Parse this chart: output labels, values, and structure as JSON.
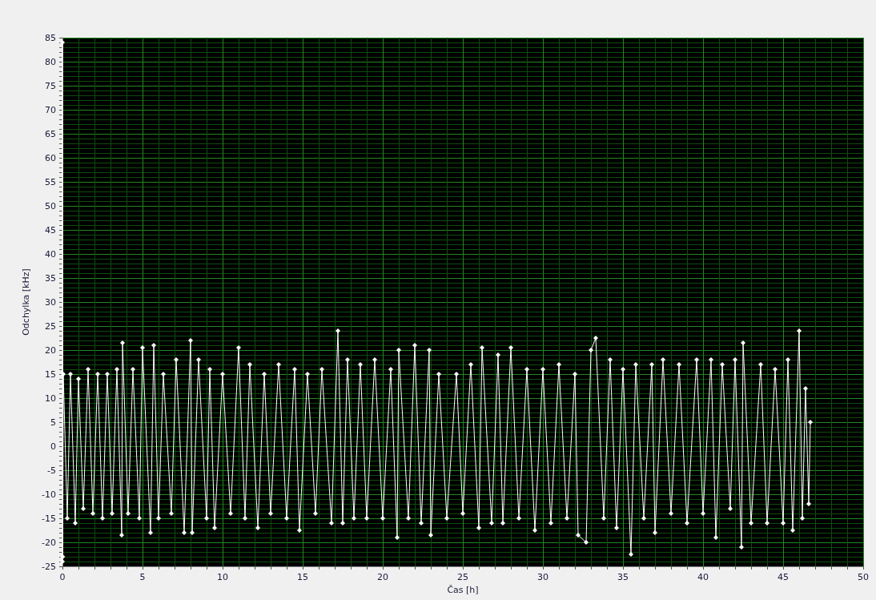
{
  "chart_data": {
    "type": "line",
    "xlabel": "Čas [h]",
    "ylabel": "Odchylka [kHz]",
    "xlim": [
      0,
      50
    ],
    "xticks": [
      0,
      {
        "value": 1,
        "label": null
      },
      {
        "value": 2,
        "label": null
      },
      {
        "value": 3,
        "label": null
      },
      {
        "value": 4,
        "label": null
      },
      5,
      {
        "value": 6,
        "label": null
      },
      {
        "value": 7,
        "label": null
      },
      {
        "value": 8,
        "label": null
      },
      {
        "value": 9,
        "label": null
      },
      10,
      {
        "value": 11,
        "label": null
      },
      {
        "value": 12,
        "label": null
      },
      {
        "value": 13,
        "label": null
      },
      {
        "value": 14,
        "label": null
      },
      15,
      {
        "value": 16,
        "label": null
      },
      {
        "value": 17,
        "label": null
      },
      {
        "value": 18,
        "label": null
      },
      {
        "value": 19,
        "label": null
      },
      20,
      {
        "value": 21,
        "label": null
      },
      {
        "value": 22,
        "label": null
      },
      {
        "value": 23,
        "label": null
      },
      {
        "value": 24,
        "label": null
      },
      25,
      {
        "value": 26,
        "label": null
      },
      {
        "value": 27,
        "label": null
      },
      {
        "value": 28,
        "label": null
      },
      {
        "value": 29,
        "label": null
      },
      30,
      {
        "value": 31,
        "label": null
      },
      {
        "value": 32,
        "label": null
      },
      {
        "value": 33,
        "label": null
      },
      {
        "value": 34,
        "label": null
      },
      35,
      {
        "value": 36,
        "label": null
      },
      {
        "value": 37,
        "label": null
      },
      {
        "value": 38,
        "label": null
      },
      {
        "value": 39,
        "label": null
      },
      40,
      {
        "value": 41,
        "label": null
      },
      {
        "value": 42,
        "label": null
      },
      {
        "value": 43,
        "label": null
      },
      {
        "value": 44,
        "label": null
      },
      45,
      {
        "value": 46,
        "label": null
      },
      {
        "value": 47,
        "label": null
      },
      {
        "value": 48,
        "label": null
      },
      {
        "value": 49,
        "label": null
      },
      50
    ],
    "ylim": [
      -25,
      85
    ],
    "yticks": [
      -25,
      {
        "value": -24,
        "label": null
      },
      {
        "value": -23,
        "label": null
      },
      {
        "value": -22,
        "label": null
      },
      {
        "value": -21,
        "label": null
      },
      -20,
      {
        "value": -19,
        "label": null
      },
      {
        "value": -18,
        "label": null
      },
      {
        "value": -17,
        "label": null
      },
      {
        "value": -16,
        "label": null
      },
      -15,
      {
        "value": -14,
        "label": null
      },
      {
        "value": -13,
        "label": null
      },
      {
        "value": -12,
        "label": null
      },
      {
        "value": -11,
        "label": null
      },
      -10,
      {
        "value": -9,
        "label": null
      },
      {
        "value": -8,
        "label": null
      },
      {
        "value": -7,
        "label": null
      },
      {
        "value": -6,
        "label": null
      },
      -5,
      {
        "value": -4,
        "label": null
      },
      {
        "value": -3,
        "label": null
      },
      {
        "value": -2,
        "label": null
      },
      {
        "value": -1,
        "label": null
      },
      0,
      {
        "value": 1,
        "label": null
      },
      {
        "value": 2,
        "label": null
      },
      {
        "value": 3,
        "label": null
      },
      {
        "value": 4,
        "label": null
      },
      5,
      {
        "value": 6,
        "label": null
      },
      {
        "value": 7,
        "label": null
      },
      {
        "value": 8,
        "label": null
      },
      {
        "value": 9,
        "label": null
      },
      10,
      {
        "value": 11,
        "label": null
      },
      {
        "value": 12,
        "label": null
      },
      {
        "value": 13,
        "label": null
      },
      {
        "value": 14,
        "label": null
      },
      15,
      {
        "value": 16,
        "label": null
      },
      {
        "value": 17,
        "label": null
      },
      {
        "value": 18,
        "label": null
      },
      {
        "value": 19,
        "label": null
      },
      20,
      {
        "value": 21,
        "label": null
      },
      {
        "value": 22,
        "label": null
      },
      {
        "value": 23,
        "label": null
      },
      {
        "value": 24,
        "label": null
      },
      25,
      {
        "value": 26,
        "label": null
      },
      {
        "value": 27,
        "label": null
      },
      {
        "value": 28,
        "label": null
      },
      {
        "value": 29,
        "label": null
      },
      30,
      {
        "value": 31,
        "label": null
      },
      {
        "value": 32,
        "label": null
      },
      {
        "value": 33,
        "label": null
      },
      {
        "value": 34,
        "label": null
      },
      35,
      {
        "value": 36,
        "label": null
      },
      {
        "value": 37,
        "label": null
      },
      {
        "value": 38,
        "label": null
      },
      {
        "value": 39,
        "label": null
      },
      40,
      {
        "value": 41,
        "label": null
      },
      {
        "value": 42,
        "label": null
      },
      {
        "value": 43,
        "label": null
      },
      {
        "value": 44,
        "label": null
      },
      45,
      {
        "value": 46,
        "label": null
      },
      {
        "value": 47,
        "label": null
      },
      {
        "value": 48,
        "label": null
      },
      {
        "value": 49,
        "label": null
      },
      50,
      {
        "value": 51,
        "label": null
      },
      {
        "value": 52,
        "label": null
      },
      {
        "value": 53,
        "label": null
      },
      {
        "value": 54,
        "label": null
      },
      55,
      {
        "value": 56,
        "label": null
      },
      {
        "value": 57,
        "label": null
      },
      {
        "value": 58,
        "label": null
      },
      {
        "value": 59,
        "label": null
      },
      60,
      {
        "value": 61,
        "label": null
      },
      {
        "value": 62,
        "label": null
      },
      {
        "value": 63,
        "label": null
      },
      {
        "value": 64,
        "label": null
      },
      65,
      {
        "value": 66,
        "label": null
      },
      {
        "value": 67,
        "label": null
      },
      {
        "value": 68,
        "label": null
      },
      {
        "value": 69,
        "label": null
      },
      70,
      {
        "value": 71,
        "label": null
      },
      {
        "value": 72,
        "label": null
      },
      {
        "value": 73,
        "label": null
      },
      {
        "value": 74,
        "label": null
      },
      75,
      {
        "value": 76,
        "label": null
      },
      {
        "value": 77,
        "label": null
      },
      {
        "value": 78,
        "label": null
      },
      {
        "value": 79,
        "label": null
      },
      80,
      {
        "value": 81,
        "label": null
      },
      {
        "value": 82,
        "label": null
      },
      {
        "value": 83,
        "label": null
      },
      {
        "value": 84,
        "label": null
      },
      85
    ],
    "grid": true,
    "marker": "diamond",
    "line_style": "solid",
    "series": [
      {
        "color": "#ffffff",
        "x": [
          0,
          0,
          0.02,
          0.05,
          0.3,
          0.5,
          0.8,
          1,
          1.3,
          1.6,
          1.9,
          2.2,
          2.5,
          2.8,
          3.1,
          3.4,
          3.7,
          3.75,
          4.1,
          4.4,
          4.8,
          5,
          5.5,
          5.7,
          6,
          6.3,
          6.8,
          7.1,
          7.6,
          8,
          8.1,
          8.5,
          9,
          9.2,
          9.5,
          10,
          10.5,
          11,
          11.4,
          11.7,
          12.2,
          12.6,
          13,
          13.5,
          14,
          14.5,
          14.8,
          15.3,
          15.8,
          16.2,
          16.8,
          17.2,
          17.5,
          17.8,
          18.2,
          18.6,
          19,
          19.5,
          20,
          20.5,
          20.9,
          21,
          21.6,
          22,
          22.4,
          22.9,
          23,
          23.5,
          24,
          24.6,
          25,
          25.5,
          26,
          26.2,
          26.8,
          27.2,
          27.5,
          28,
          28.5,
          29,
          29.5,
          30,
          30.5,
          31,
          31.5,
          32,
          32.2,
          32.7,
          33,
          33.3,
          33.8,
          34.2,
          34.6,
          35,
          35.5,
          35.8,
          36.3,
          36.8,
          37,
          37.5,
          38,
          38.5,
          39,
          39.6,
          40,
          40.5,
          40.8,
          41.2,
          41.7,
          42,
          42.4,
          42.5,
          43,
          43.6,
          44,
          44.5,
          45,
          45.3,
          45.6,
          46,
          46.2,
          46.4,
          46.6,
          46.7
        ],
        "values": [
          -24,
          84,
          -23,
          15,
          -15,
          15,
          -16,
          14,
          -13,
          16,
          -14,
          15,
          -15,
          15,
          -14,
          16,
          -18.5,
          21.5,
          -14,
          16,
          -15,
          20.5,
          -18,
          21,
          -15,
          15,
          -14,
          18,
          -18,
          22,
          -18,
          18,
          -15,
          16,
          -17,
          15,
          -14,
          20.5,
          -15,
          17,
          -17,
          15,
          -14,
          17,
          -15,
          16,
          -17.5,
          15,
          -14,
          16,
          -16,
          24,
          -16,
          18,
          -15,
          17,
          -15,
          18,
          -15,
          16,
          -19,
          20,
          -15,
          21,
          -16,
          20,
          -18.5,
          15,
          -15,
          15,
          -14,
          17,
          -17,
          20.5,
          -16,
          19,
          -16,
          20.5,
          -15,
          16,
          -17.5,
          16,
          -16,
          17,
          -15,
          15,
          -18.5,
          -20,
          20,
          22.5,
          -15,
          18,
          -17,
          16,
          -22.5,
          17,
          -15,
          17,
          -18,
          18,
          -14,
          17,
          -16,
          18,
          -14,
          18,
          -19,
          17,
          -13,
          18,
          -21,
          21.5,
          -16,
          17,
          -16,
          16,
          -16,
          18,
          -17.5,
          24,
          -15,
          12,
          -12,
          5
        ]
      }
    ]
  }
}
